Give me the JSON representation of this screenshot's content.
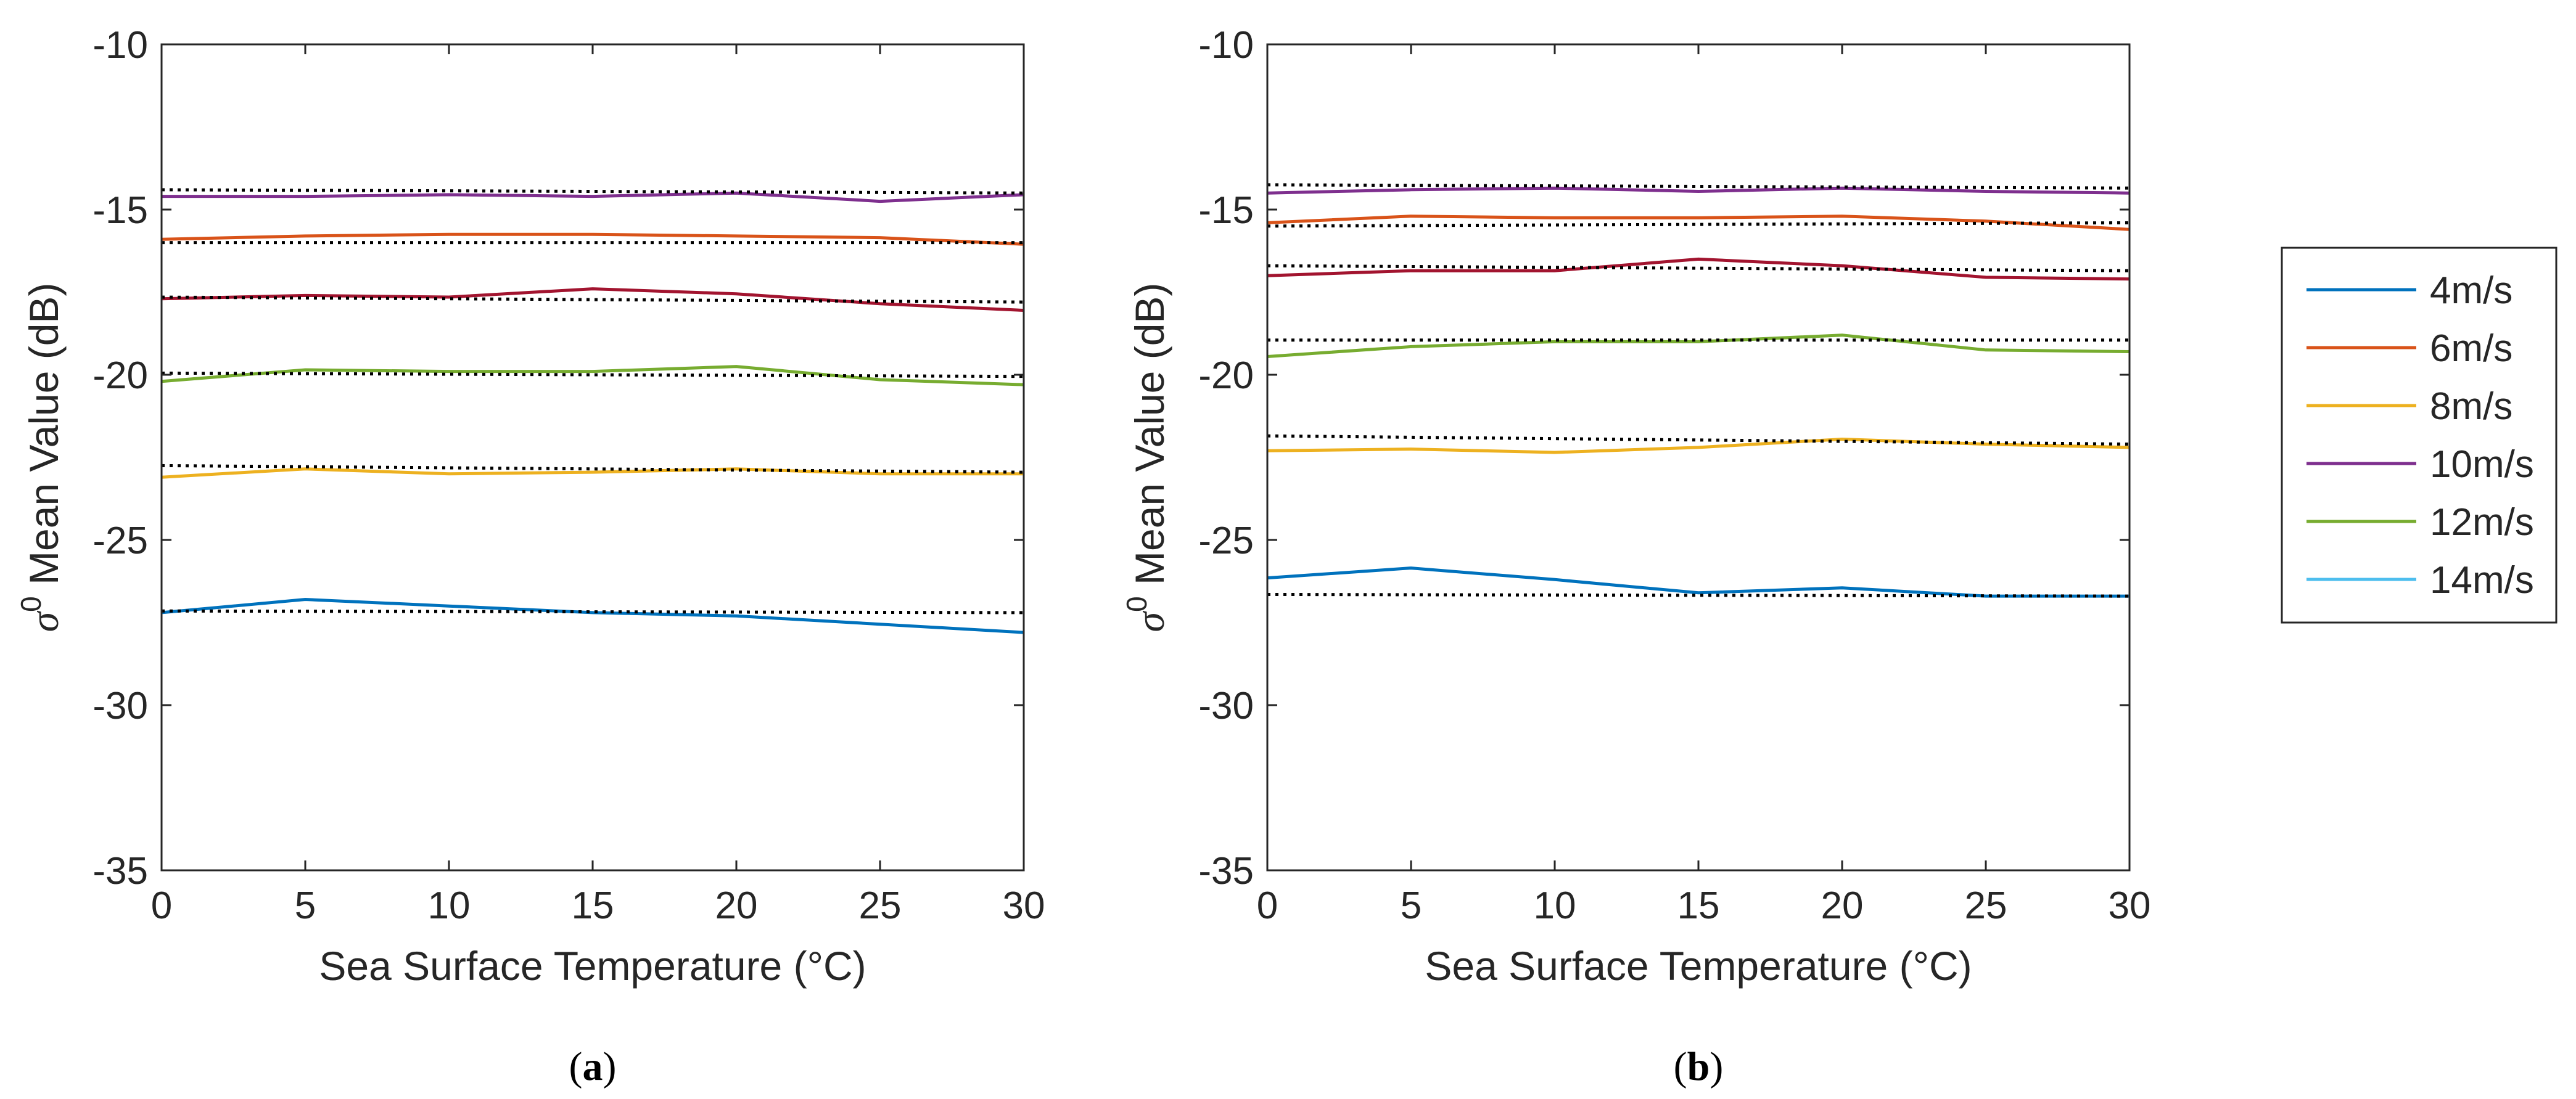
{
  "figure": {
    "legend": {
      "entries": [
        {
          "label": "4m/s",
          "color": "#0072BD"
        },
        {
          "label": "6m/s",
          "color": "#D95319"
        },
        {
          "label": "8m/s",
          "color": "#EDB120"
        },
        {
          "label": "10m/s",
          "color": "#7E2F8E"
        },
        {
          "label": "12m/s",
          "color": "#77AC30"
        },
        {
          "label": "14m/s",
          "color": "#4DBEEE"
        }
      ]
    }
  },
  "chart_data": [
    {
      "type": "line",
      "panel_label": "a",
      "xlabel": "Sea Surface Temperature (°C)",
      "ylabel_prefix": "σ",
      "ylabel_sup": "0",
      "ylabel_suffix": " Mean Value (dB)",
      "xlim": [
        0,
        30
      ],
      "ylim": [
        -35,
        -10
      ],
      "x_ticks": [
        0,
        5,
        10,
        15,
        20,
        25,
        30
      ],
      "y_ticks": [
        -35,
        -30,
        -25,
        -20,
        -15,
        -10
      ],
      "x": [
        0,
        5,
        10,
        15,
        20,
        25,
        30
      ],
      "series": [
        {
          "name": "4m/s",
          "color": "#0072BD",
          "values": [
            -27.2,
            -26.8,
            -27.0,
            -27.2,
            -27.3,
            -27.55,
            -27.8
          ],
          "reference": [
            -27.15,
            -27.2
          ]
        },
        {
          "name": "6m/s",
          "color": "#D95319",
          "values": [
            -15.9,
            -15.8,
            -15.75,
            -15.75,
            -15.8,
            -15.85,
            -16.05
          ],
          "reference": [
            -16.0,
            -16.0
          ]
        },
        {
          "name": "8m/s",
          "color": "#EDB120",
          "values": [
            -23.1,
            -22.85,
            -23.0,
            -22.95,
            -22.85,
            -23.0,
            -23.0
          ],
          "reference": [
            -22.75,
            -22.95
          ]
        },
        {
          "name": "10m/s",
          "color": "#7E2F8E",
          "values": [
            -14.6,
            -14.6,
            -14.55,
            -14.6,
            -14.5,
            -14.75,
            -14.55
          ],
          "reference": [
            -14.4,
            -14.5
          ]
        },
        {
          "name": "12m/s",
          "color": "#77AC30",
          "values": [
            -20.2,
            -19.85,
            -19.9,
            -19.9,
            -19.75,
            -20.15,
            -20.3
          ],
          "reference": [
            -19.95,
            -20.05
          ]
        },
        {
          "name": "14m/s",
          "color": "#A2142F",
          "values": [
            -17.7,
            -17.6,
            -17.65,
            -17.4,
            -17.55,
            -17.85,
            -18.05
          ],
          "reference": [
            -17.65,
            -17.8
          ]
        }
      ]
    },
    {
      "type": "line",
      "panel_label": "b",
      "xlabel": "Sea Surface Temperature (°C)",
      "ylabel_prefix": "σ",
      "ylabel_sup": "0",
      "ylabel_suffix": " Mean Value (dB)",
      "xlim": [
        0,
        30
      ],
      "ylim": [
        -35,
        -10
      ],
      "x_ticks": [
        0,
        5,
        10,
        15,
        20,
        25,
        30
      ],
      "y_ticks": [
        -35,
        -30,
        -25,
        -20,
        -15,
        -10
      ],
      "x": [
        0,
        5,
        10,
        15,
        20,
        25,
        30
      ],
      "series": [
        {
          "name": "4m/s",
          "color": "#0072BD",
          "values": [
            -26.15,
            -25.85,
            -26.2,
            -26.6,
            -26.45,
            -26.7,
            -26.7
          ],
          "reference": [
            -26.65,
            -26.7
          ]
        },
        {
          "name": "6m/s",
          "color": "#D95319",
          "values": [
            -15.4,
            -15.2,
            -15.25,
            -15.25,
            -15.2,
            -15.35,
            -15.6
          ],
          "reference": [
            -15.5,
            -15.4
          ]
        },
        {
          "name": "8m/s",
          "color": "#EDB120",
          "values": [
            -22.3,
            -22.25,
            -22.35,
            -22.2,
            -21.95,
            -22.1,
            -22.2
          ],
          "reference": [
            -21.85,
            -22.1
          ]
        },
        {
          "name": "10m/s",
          "color": "#7E2F8E",
          "values": [
            -14.5,
            -14.4,
            -14.35,
            -14.45,
            -14.35,
            -14.45,
            -14.5
          ],
          "reference": [
            -14.25,
            -14.35
          ]
        },
        {
          "name": "12m/s",
          "color": "#77AC30",
          "values": [
            -19.45,
            -19.15,
            -19.0,
            -19.0,
            -18.8,
            -19.25,
            -19.3
          ],
          "reference": [
            -18.95,
            -18.95
          ]
        },
        {
          "name": "14m/s",
          "color": "#A2142F",
          "values": [
            -17.0,
            -16.85,
            -16.85,
            -16.5,
            -16.7,
            -17.05,
            -17.1
          ],
          "reference": [
            -16.7,
            -16.85
          ]
        }
      ]
    }
  ]
}
